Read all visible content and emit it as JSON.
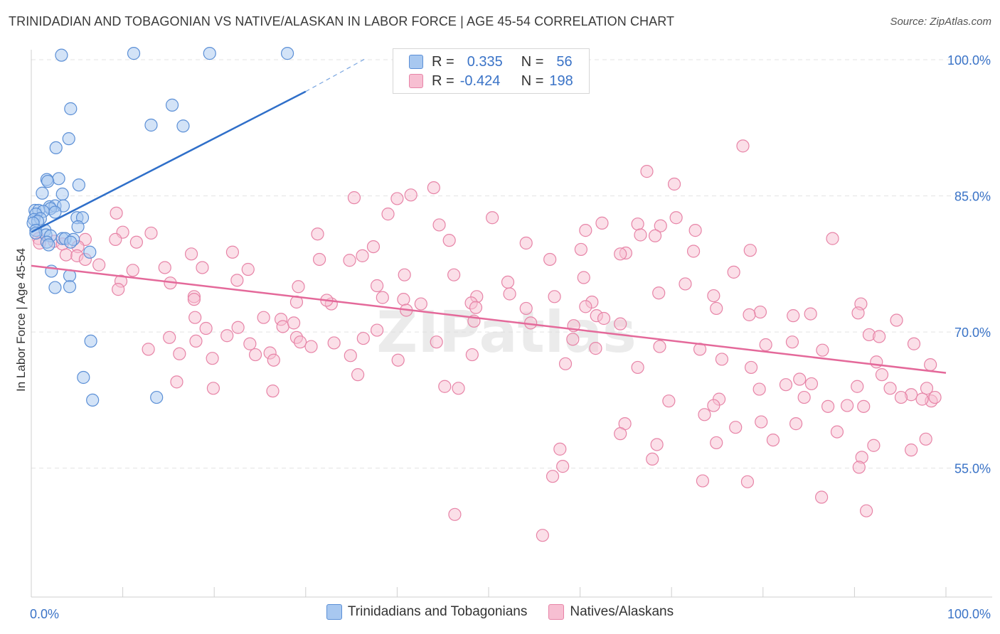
{
  "title": "TRINIDADIAN AND TOBAGONIAN VS NATIVE/ALASKAN IN LABOR FORCE | AGE 45-54 CORRELATION CHART",
  "source": "Source: ZipAtlas.com",
  "watermark": "ZIPatlas",
  "stats": {
    "rows": [
      {
        "r_label": "R =",
        "r_value": "0.335",
        "n_label": "N =",
        "n_value": "56",
        "color": "#a8c8f0",
        "edge": "#5b8fd6"
      },
      {
        "r_label": "R =",
        "r_value": "-0.424",
        "n_label": "N =",
        "n_value": "198",
        "color": "#f7bfd2",
        "edge": "#e784a7"
      }
    ]
  },
  "legend": {
    "series1": "Trinidadians and Tobagonians",
    "series2": "Natives/Alaskans"
  },
  "chart_data": {
    "type": "scatter",
    "title": "TRINIDADIAN AND TOBAGONIAN VS NATIVE/ALASKAN IN LABOR FORCE | AGE 45-54 CORRELATION CHART",
    "ylabel": "In Labor Force | Age 45-54",
    "xlabel": "",
    "x_tick_labels": [
      "0.0%",
      "100.0%"
    ],
    "y_tick_labels": [
      "100.0%",
      "85.0%",
      "70.0%",
      "55.0%"
    ],
    "y_ticks": [
      100,
      85,
      70,
      55
    ],
    "xlim": [
      0,
      100
    ],
    "ylim": [
      40.8,
      101.1
    ],
    "grid": true,
    "series": [
      {
        "name": "Trinidadians and Tobagonians",
        "color": "#5b8fd6",
        "fill": "#a8c8f0",
        "trend": {
          "x0": 0,
          "y0": 81.0,
          "x1": 30,
          "y1": 96.5,
          "dash_to_x": 36.5,
          "dash_to_y": 100.1
        },
        "points": [
          [
            3.3,
            100.5
          ],
          [
            11.2,
            100.7
          ],
          [
            19.5,
            100.7
          ],
          [
            28.0,
            100.7
          ],
          [
            15.4,
            95.0
          ],
          [
            4.3,
            94.6
          ],
          [
            13.1,
            92.8
          ],
          [
            16.6,
            92.7
          ],
          [
            4.1,
            91.3
          ],
          [
            2.7,
            90.3
          ],
          [
            1.7,
            86.8
          ],
          [
            3.0,
            86.9
          ],
          [
            1.8,
            86.6
          ],
          [
            5.2,
            86.2
          ],
          [
            3.4,
            85.2
          ],
          [
            1.2,
            85.3
          ],
          [
            2.0,
            83.8
          ],
          [
            2.6,
            83.9
          ],
          [
            3.5,
            83.9
          ],
          [
            2.1,
            83.6
          ],
          [
            0.4,
            83.4
          ],
          [
            0.8,
            83.4
          ],
          [
            1.3,
            83.3
          ],
          [
            0.5,
            83.0
          ],
          [
            2.6,
            83.2
          ],
          [
            0.3,
            82.4
          ],
          [
            1.0,
            82.5
          ],
          [
            5.0,
            82.6
          ],
          [
            5.6,
            82.6
          ],
          [
            0.7,
            82.2
          ],
          [
            0.2,
            82.0
          ],
          [
            5.1,
            81.6
          ],
          [
            0.5,
            81.2
          ],
          [
            1.5,
            81.2
          ],
          [
            1.6,
            80.7
          ],
          [
            2.1,
            80.6
          ],
          [
            3.4,
            80.3
          ],
          [
            3.7,
            80.3
          ],
          [
            4.6,
            80.2
          ],
          [
            1.7,
            79.9
          ],
          [
            1.9,
            79.6
          ],
          [
            4.3,
            79.9
          ],
          [
            0.5,
            80.9
          ],
          [
            6.4,
            78.8
          ],
          [
            2.2,
            76.7
          ],
          [
            4.2,
            76.2
          ],
          [
            2.6,
            74.9
          ],
          [
            4.2,
            75.0
          ],
          [
            6.5,
            69.0
          ],
          [
            5.7,
            65.0
          ],
          [
            6.7,
            62.5
          ],
          [
            13.7,
            62.8
          ]
        ]
      },
      {
        "name": "Natives/Alaskans",
        "color": "#e784a7",
        "fill": "#f7bfd2",
        "trend": {
          "x0": 0,
          "y0": 77.3,
          "x1": 100,
          "y1": 65.5
        },
        "points": [
          [
            77.8,
            90.5
          ],
          [
            67.3,
            87.7
          ],
          [
            70.3,
            86.3
          ],
          [
            44.0,
            85.9
          ],
          [
            41.5,
            85.1
          ],
          [
            35.3,
            84.8
          ],
          [
            40.0,
            84.7
          ],
          [
            9.3,
            83.1
          ],
          [
            39.0,
            83.0
          ],
          [
            50.4,
            82.6
          ],
          [
            70.5,
            82.6
          ],
          [
            62.4,
            82.0
          ],
          [
            66.3,
            81.9
          ],
          [
            68.8,
            81.7
          ],
          [
            44.6,
            81.8
          ],
          [
            60.6,
            81.2
          ],
          [
            72.6,
            81.2
          ],
          [
            10.0,
            81.0
          ],
          [
            13.1,
            80.9
          ],
          [
            31.3,
            80.8
          ],
          [
            66.6,
            80.7
          ],
          [
            68.2,
            80.6
          ],
          [
            87.6,
            80.3
          ],
          [
            0.8,
            80.3
          ],
          [
            5.9,
            80.2
          ],
          [
            9.2,
            80.2
          ],
          [
            45.7,
            80.1
          ],
          [
            2.5,
            80.0
          ],
          [
            11.5,
            79.9
          ],
          [
            54.1,
            79.8
          ],
          [
            0.9,
            79.8
          ],
          [
            3.4,
            79.7
          ],
          [
            5.1,
            79.4
          ],
          [
            37.4,
            79.4
          ],
          [
            60.1,
            79.1
          ],
          [
            78.6,
            79.0
          ],
          [
            72.4,
            78.9
          ],
          [
            65.0,
            78.7
          ],
          [
            17.5,
            78.6
          ],
          [
            64.4,
            78.6
          ],
          [
            3.8,
            78.5
          ],
          [
            5.0,
            78.4
          ],
          [
            22.0,
            78.8
          ],
          [
            36.2,
            78.4
          ],
          [
            5.9,
            78.0
          ],
          [
            31.5,
            78.0
          ],
          [
            56.7,
            78.0
          ],
          [
            34.8,
            77.9
          ],
          [
            7.4,
            77.4
          ],
          [
            14.6,
            77.1
          ],
          [
            18.7,
            77.1
          ],
          [
            23.7,
            76.9
          ],
          [
            76.8,
            76.6
          ],
          [
            40.8,
            76.3
          ],
          [
            46.2,
            76.3
          ],
          [
            60.4,
            76.0
          ],
          [
            22.5,
            75.7
          ],
          [
            9.8,
            75.6
          ],
          [
            11.1,
            76.8
          ],
          [
            15.2,
            75.4
          ],
          [
            71.5,
            75.3
          ],
          [
            29.2,
            75.0
          ],
          [
            37.8,
            75.1
          ],
          [
            9.5,
            74.7
          ],
          [
            52.3,
            74.2
          ],
          [
            17.8,
            73.9
          ],
          [
            68.6,
            74.3
          ],
          [
            38.4,
            73.8
          ],
          [
            48.7,
            73.9
          ],
          [
            17.8,
            73.6
          ],
          [
            40.7,
            73.6
          ],
          [
            57.2,
            73.9
          ],
          [
            61.3,
            73.3
          ],
          [
            29.0,
            73.3
          ],
          [
            74.6,
            74.0
          ],
          [
            90.7,
            73.1
          ],
          [
            48.1,
            73.2
          ],
          [
            42.6,
            73.1
          ],
          [
            32.8,
            73.1
          ],
          [
            60.6,
            72.8
          ],
          [
            54.1,
            72.6
          ],
          [
            41.0,
            72.4
          ],
          [
            74.9,
            72.6
          ],
          [
            79.7,
            72.2
          ],
          [
            85.2,
            72.0
          ],
          [
            90.4,
            72.1
          ],
          [
            78.5,
            71.9
          ],
          [
            61.8,
            71.8
          ],
          [
            25.4,
            71.6
          ],
          [
            17.9,
            71.6
          ],
          [
            27.3,
            71.4
          ],
          [
            62.6,
            71.5
          ],
          [
            48.4,
            71.2
          ],
          [
            54.6,
            71.0
          ],
          [
            64.4,
            70.9
          ],
          [
            59.3,
            70.7
          ],
          [
            19.1,
            70.4
          ],
          [
            22.6,
            70.5
          ],
          [
            27.5,
            70.6
          ],
          [
            83.3,
            71.8
          ],
          [
            94.6,
            71.3
          ],
          [
            37.8,
            70.2
          ],
          [
            21.4,
            69.6
          ],
          [
            29.0,
            69.4
          ],
          [
            15.1,
            69.4
          ],
          [
            91.6,
            69.7
          ],
          [
            92.7,
            69.5
          ],
          [
            59.2,
            69.2
          ],
          [
            36.3,
            69.3
          ],
          [
            18.0,
            69.0
          ],
          [
            29.4,
            68.9
          ],
          [
            33.1,
            68.8
          ],
          [
            83.2,
            68.9
          ],
          [
            68.7,
            68.4
          ],
          [
            80.3,
            68.6
          ],
          [
            23.9,
            68.7
          ],
          [
            30.6,
            68.4
          ],
          [
            26.1,
            67.7
          ],
          [
            34.9,
            67.4
          ],
          [
            48.2,
            67.5
          ],
          [
            73.1,
            68.1
          ],
          [
            61.7,
            68.2
          ],
          [
            86.5,
            68.0
          ],
          [
            96.5,
            68.7
          ],
          [
            12.8,
            68.1
          ],
          [
            16.2,
            67.6
          ],
          [
            24.5,
            67.5
          ],
          [
            19.8,
            67.1
          ],
          [
            26.5,
            66.9
          ],
          [
            75.5,
            67.0
          ],
          [
            58.4,
            66.5
          ],
          [
            40.1,
            66.9
          ],
          [
            92.4,
            66.7
          ],
          [
            66.3,
            66.1
          ],
          [
            78.7,
            66.1
          ],
          [
            93.0,
            65.3
          ],
          [
            35.7,
            65.3
          ],
          [
            84.0,
            64.8
          ],
          [
            98.3,
            66.4
          ],
          [
            15.9,
            64.5
          ],
          [
            85.3,
            64.3
          ],
          [
            82.5,
            64.2
          ],
          [
            90.3,
            64.0
          ],
          [
            97.9,
            63.8
          ],
          [
            26.4,
            63.5
          ],
          [
            19.9,
            63.8
          ],
          [
            46.7,
            63.8
          ],
          [
            45.2,
            64.0
          ],
          [
            79.6,
            63.7
          ],
          [
            96.2,
            63.1
          ],
          [
            84.5,
            62.8
          ],
          [
            98.4,
            62.4
          ],
          [
            75.2,
            62.6
          ],
          [
            93.9,
            63.8
          ],
          [
            69.7,
            62.4
          ],
          [
            98.8,
            62.8
          ],
          [
            91.0,
            61.8
          ],
          [
            95.1,
            62.8
          ],
          [
            74.6,
            61.9
          ],
          [
            73.6,
            60.9
          ],
          [
            87.1,
            61.8
          ],
          [
            89.2,
            61.9
          ],
          [
            79.8,
            60.1
          ],
          [
            83.6,
            59.9
          ],
          [
            64.9,
            59.9
          ],
          [
            77.0,
            59.5
          ],
          [
            64.4,
            58.8
          ],
          [
            88.1,
            59.0
          ],
          [
            97.8,
            58.2
          ],
          [
            81.1,
            58.1
          ],
          [
            57.8,
            57.1
          ],
          [
            74.9,
            57.8
          ],
          [
            68.4,
            57.6
          ],
          [
            96.2,
            57.0
          ],
          [
            92.1,
            57.5
          ],
          [
            90.8,
            56.2
          ],
          [
            67.9,
            56.0
          ],
          [
            58.1,
            55.2
          ],
          [
            90.5,
            55.1
          ],
          [
            57.0,
            54.1
          ],
          [
            73.4,
            53.6
          ],
          [
            78.3,
            53.5
          ],
          [
            86.4,
            51.8
          ],
          [
            91.3,
            50.3
          ],
          [
            46.3,
            49.9
          ],
          [
            55.9,
            47.6
          ],
          [
            32.3,
            73.5
          ],
          [
            52.1,
            75.5
          ],
          [
            48.6,
            72.7
          ],
          [
            28.7,
            71.0
          ],
          [
            44.3,
            68.9
          ],
          [
            97.4,
            62.6
          ]
        ]
      }
    ]
  }
}
